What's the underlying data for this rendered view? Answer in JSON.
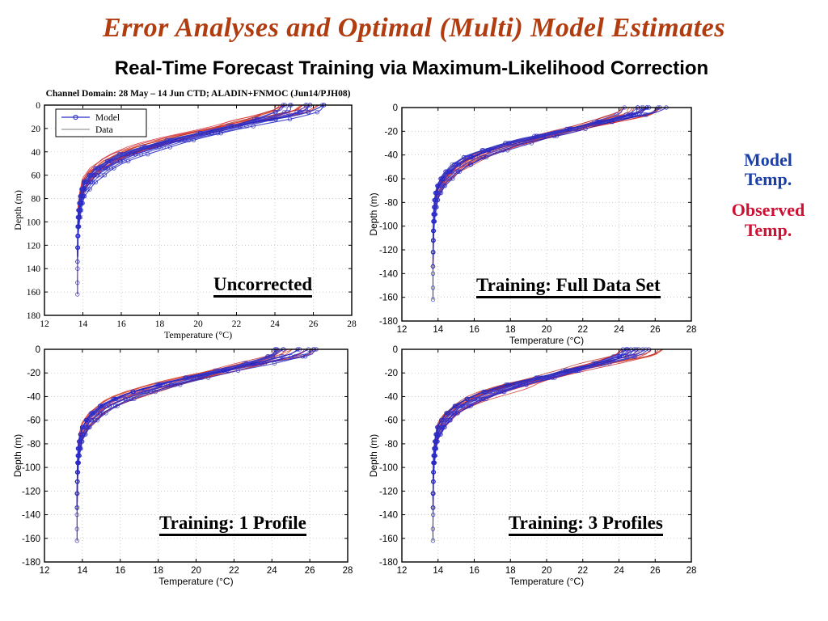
{
  "slide": {
    "title": "Error Analyses and Optimal (Multi) Model Estimates",
    "subtitle": "Real-Time Forecast Training via Maximum-Likelihood Correction",
    "title_color": "#b13c10"
  },
  "side_legend": {
    "model_label": "Model\nTemp.",
    "observed_label": "Observed\nTemp.",
    "model_color": "#1b3fa8",
    "observed_color": "#cc1133"
  },
  "chart_data": [
    {
      "id": "uncorrected",
      "type": "line",
      "title": "Channel Domain:  28 May – 14 Jun CTD; ALADIN+FNMOC  (Jun14/PJH08)",
      "annotation": "Uncorrected",
      "xlabel": "Temperature (°C)",
      "ylabel": "Depth (m)",
      "xlim": [
        12,
        28
      ],
      "xticks": [
        12,
        14,
        16,
        18,
        20,
        22,
        24,
        26,
        28
      ],
      "depth_range": [
        0,
        180
      ],
      "yticks": [
        0,
        20,
        40,
        60,
        80,
        100,
        120,
        140,
        160,
        180
      ],
      "ytick_labels": [
        "0",
        "20",
        "40",
        "60",
        "80",
        "100",
        "120",
        "140",
        "160",
        "180"
      ],
      "grid": true,
      "tick_font": "serif",
      "legend": [
        {
          "label": "Model",
          "color": "#2a2ac8",
          "marker": "circle"
        },
        {
          "label": "Data",
          "color": "#9b9b9b",
          "marker": "line"
        }
      ],
      "ensemble": {
        "n_model": 11,
        "n_data": 13,
        "seed": 101,
        "spread": 1.0,
        "bulges": 2
      },
      "profiles": {
        "depths": [
          0,
          5,
          10,
          15,
          20,
          25,
          30,
          35,
          40,
          45,
          50,
          60,
          70,
          80,
          90,
          100,
          110,
          120,
          135,
          150,
          163
        ],
        "model_temp": [
          25.5,
          25.2,
          24.2,
          22.9,
          21.6,
          20.3,
          19.0,
          17.9,
          16.9,
          16.1,
          15.5,
          14.6,
          14.1,
          13.92,
          13.82,
          13.76,
          13.74,
          13.73,
          13.72,
          13.72,
          13.72
        ],
        "observed_temp": [
          25.2,
          24.8,
          23.6,
          22.2,
          20.9,
          19.6,
          18.3,
          17.2,
          16.3,
          15.6,
          15.05,
          14.35,
          13.98,
          13.85,
          13.78,
          13.75,
          13.74,
          13.73,
          13.72,
          13.72,
          13.72
        ]
      },
      "series_colors": {
        "model": "#2626c8",
        "data": "#cc2222"
      }
    },
    {
      "id": "training-full-data-set",
      "type": "line",
      "title": "",
      "annotation": "Training: Full Data Set",
      "xlabel": "Temperature (°C)",
      "ylabel": "Depth (m)",
      "xlim": [
        12,
        28
      ],
      "xticks": [
        12,
        14,
        16,
        18,
        20,
        22,
        24,
        26,
        28
      ],
      "depth_range": [
        0,
        180
      ],
      "yticks": [
        0,
        20,
        40,
        60,
        80,
        100,
        120,
        140,
        160,
        180
      ],
      "ytick_labels": [
        "0",
        "-20",
        "-40",
        "-60",
        "-80",
        "-100",
        "-120",
        "-140",
        "-160",
        "-180"
      ],
      "grid": true,
      "tick_font": "sans",
      "legend": [],
      "ensemble": {
        "n_model": 11,
        "n_data": 13,
        "seed": 202,
        "spread": 0.9,
        "bulges": 2
      },
      "profiles": {
        "depths": [
          0,
          5,
          10,
          15,
          20,
          25,
          30,
          35,
          40,
          45,
          50,
          60,
          70,
          80,
          90,
          100,
          110,
          120,
          135,
          150,
          163
        ],
        "model_temp": [
          25.25,
          24.85,
          23.65,
          22.28,
          20.98,
          19.68,
          18.38,
          17.27,
          16.36,
          15.65,
          15.09,
          14.38,
          14.0,
          13.86,
          13.79,
          13.75,
          13.74,
          13.73,
          13.72,
          13.72,
          13.72
        ],
        "observed_temp": [
          25.2,
          24.8,
          23.6,
          22.2,
          20.9,
          19.6,
          18.3,
          17.2,
          16.3,
          15.6,
          15.05,
          14.35,
          13.98,
          13.85,
          13.78,
          13.75,
          13.74,
          13.73,
          13.72,
          13.72,
          13.72
        ]
      },
      "series_colors": {
        "model": "#2626c8",
        "data": "#cc2222"
      }
    },
    {
      "id": "training-1-profile",
      "type": "line",
      "title": "",
      "annotation": "Training: 1 Profile",
      "xlabel": "Temperature (°C)",
      "ylabel": "Depth (m)",
      "xlim": [
        12,
        28
      ],
      "xticks": [
        12,
        14,
        16,
        18,
        20,
        22,
        24,
        26,
        28
      ],
      "depth_range": [
        0,
        180
      ],
      "yticks": [
        0,
        20,
        40,
        60,
        80,
        100,
        120,
        140,
        160,
        180
      ],
      "ytick_labels": [
        "0",
        "-20",
        "-40",
        "-60",
        "-80",
        "-100",
        "-120",
        "-140",
        "-160",
        "-180"
      ],
      "grid": true,
      "tick_font": "sans",
      "legend": [],
      "ensemble": {
        "n_model": 11,
        "n_data": 13,
        "seed": 303,
        "spread": 1.0,
        "bulges": 2
      },
      "profiles": {
        "depths": [
          0,
          5,
          10,
          15,
          20,
          25,
          30,
          35,
          40,
          45,
          50,
          60,
          70,
          80,
          90,
          100,
          110,
          120,
          135,
          150,
          163
        ],
        "model_temp": [
          25.3,
          24.9,
          23.75,
          22.35,
          21.05,
          19.75,
          18.45,
          17.35,
          16.42,
          15.7,
          15.14,
          14.4,
          14.01,
          13.87,
          13.79,
          13.75,
          13.74,
          13.73,
          13.72,
          13.72,
          13.72
        ],
        "observed_temp": [
          25.2,
          24.8,
          23.6,
          22.2,
          20.9,
          19.6,
          18.3,
          17.2,
          16.3,
          15.6,
          15.05,
          14.35,
          13.98,
          13.85,
          13.78,
          13.75,
          13.74,
          13.73,
          13.72,
          13.72,
          13.72
        ]
      },
      "series_colors": {
        "model": "#2626c8",
        "data": "#cc2222"
      }
    },
    {
      "id": "training-3-profiles",
      "type": "line",
      "title": "",
      "annotation": "Training: 3 Profiles",
      "xlabel": "Temperature (°C)",
      "ylabel": "Depth (m)",
      "xlim": [
        12,
        28
      ],
      "xticks": [
        12,
        14,
        16,
        18,
        20,
        22,
        24,
        26,
        28
      ],
      "depth_range": [
        0,
        180
      ],
      "yticks": [
        0,
        20,
        40,
        60,
        80,
        100,
        120,
        140,
        160,
        180
      ],
      "ytick_labels": [
        "0",
        "-20",
        "-40",
        "-60",
        "-80",
        "-100",
        "-120",
        "-140",
        "-160",
        "-180"
      ],
      "grid": true,
      "tick_font": "sans",
      "legend": [],
      "ensemble": {
        "n_model": 11,
        "n_data": 13,
        "seed": 404,
        "spread": 0.95,
        "bulges": 2
      },
      "profiles": {
        "depths": [
          0,
          5,
          10,
          15,
          20,
          25,
          30,
          35,
          40,
          45,
          50,
          60,
          70,
          80,
          90,
          100,
          110,
          120,
          135,
          150,
          163
        ],
        "model_temp": [
          25.25,
          24.85,
          23.67,
          22.3,
          21.0,
          19.7,
          18.4,
          17.3,
          16.38,
          15.66,
          15.1,
          14.38,
          14.0,
          13.86,
          13.79,
          13.75,
          13.74,
          13.73,
          13.72,
          13.72,
          13.72
        ],
        "observed_temp": [
          25.2,
          24.8,
          23.6,
          22.2,
          20.9,
          19.6,
          18.3,
          17.2,
          16.3,
          15.6,
          15.05,
          14.35,
          13.98,
          13.85,
          13.78,
          13.75,
          13.74,
          13.73,
          13.72,
          13.72,
          13.72
        ]
      },
      "series_colors": {
        "model": "#2626c8",
        "data": "#cc2222"
      }
    }
  ]
}
